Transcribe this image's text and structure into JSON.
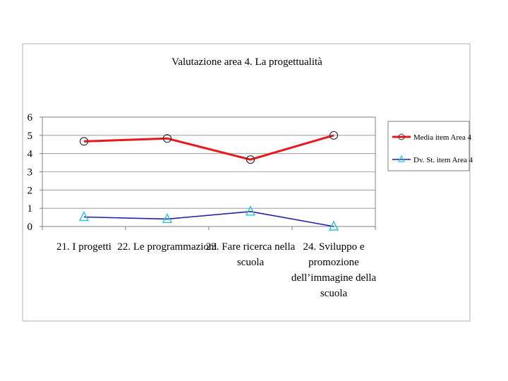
{
  "chart_data": {
    "type": "line",
    "title": "Valutazione area 4. La progettualità",
    "categories": [
      [
        "21. I progetti"
      ],
      [
        "22. Le programmazioni"
      ],
      [
        "23. Fare ricerca nella",
        "scuola"
      ],
      [
        "24. Sviluppo e",
        "promozione",
        "dell’immagine della",
        "scuola"
      ]
    ],
    "series": [
      {
        "name": "Media item Area 4",
        "values": [
          4.67,
          4.83,
          3.67,
          5.0
        ],
        "color": "#e8191c",
        "marker": "circle"
      },
      {
        "name": "Dv. St. item Area 4",
        "values": [
          0.52,
          0.41,
          0.82,
          0.0
        ],
        "color": "#1f1fa8",
        "marker": "triangle",
        "marker_color": "#26c6da"
      }
    ],
    "ylim": [
      0,
      6
    ],
    "yticks": [
      0,
      1,
      2,
      3,
      4,
      5,
      6
    ],
    "grid": true,
    "legend": "right"
  }
}
